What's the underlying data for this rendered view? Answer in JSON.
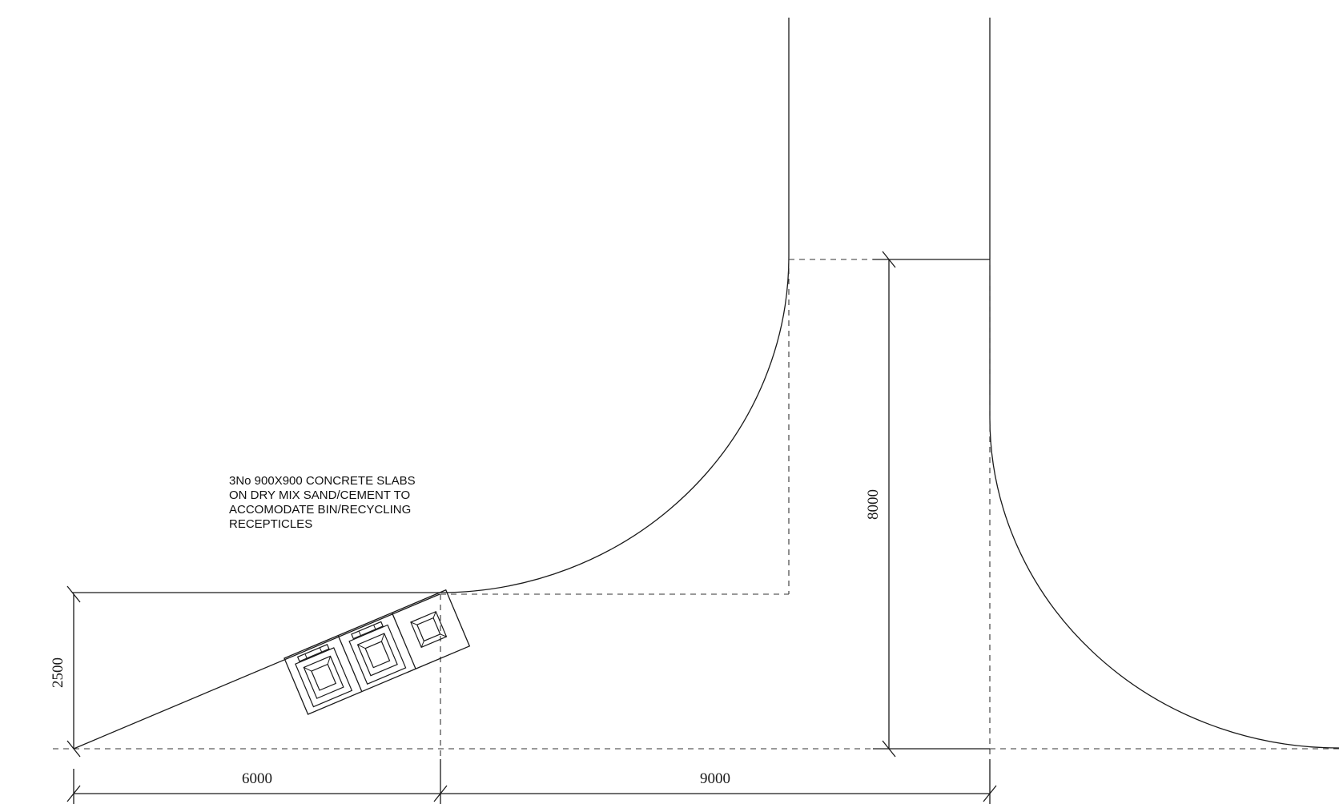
{
  "note": {
    "lines": [
      "3No 900X900 CONCRETE SLABS",
      "ON DRY MIX SAND/CEMENT TO",
      "ACCOMODATE BIN/RECYCLING",
      "RECEPTICLES"
    ]
  },
  "dimensions": {
    "width_left": "6000",
    "width_right": "9000",
    "height_left": "2500",
    "height_right": "8000"
  },
  "colors": {
    "line": "#1a1a1a",
    "background": "#ffffff"
  },
  "slabs": {
    "count": 3,
    "bins": [
      "bin",
      "bin",
      "recycling-receptacle"
    ]
  }
}
